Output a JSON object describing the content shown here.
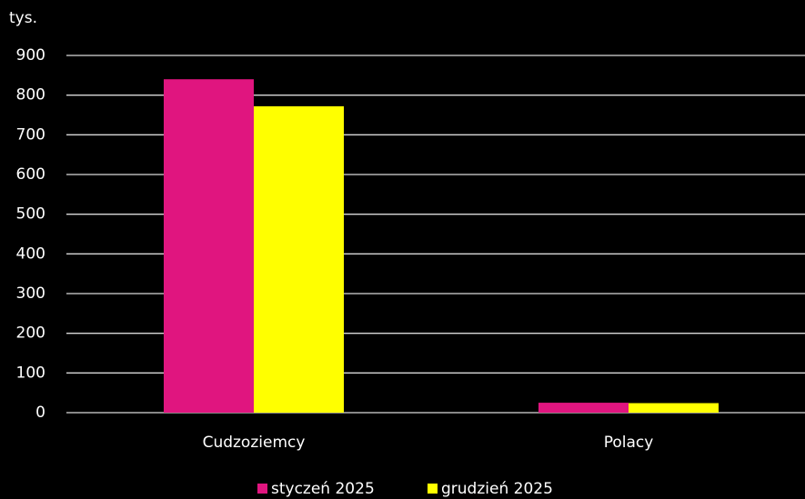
{
  "chart_data": {
    "type": "bar",
    "y_label": "tys.",
    "categories": [
      "Cudzoziemcy",
      "Polacy"
    ],
    "series": [
      {
        "name": "styczeń 2025",
        "color": "#e0157f",
        "values": [
          840,
          25
        ]
      },
      {
        "name": "grudzień 2025",
        "color": "#ffff00",
        "values": [
          772,
          24
        ]
      }
    ],
    "ylim": [
      0,
      900
    ],
    "yticks": [
      0,
      100,
      200,
      300,
      400,
      500,
      600,
      700,
      800,
      900
    ],
    "grid": true,
    "legend": "bottom"
  }
}
